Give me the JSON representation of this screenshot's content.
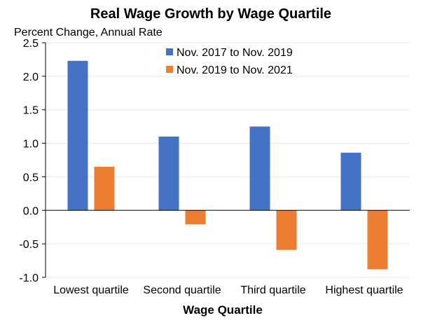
{
  "chart_data": {
    "type": "bar",
    "title": "Real Wage Growth by Wage Quartile",
    "ylabel": "Percent Change, Annual Rate",
    "xlabel": "Wage Quartile",
    "categories": [
      "Lowest quartile",
      "Second quartile",
      "Third quartile",
      "Highest quartile"
    ],
    "series": [
      {
        "name": "Nov. 2017 to Nov. 2019",
        "color": "#4472C4",
        "values": [
          2.23,
          1.1,
          1.25,
          0.86
        ]
      },
      {
        "name": "Nov. 2019 to Nov. 2021",
        "color": "#ED7D31",
        "values": [
          0.65,
          -0.21,
          -0.59,
          -0.88
        ]
      }
    ],
    "ylim": [
      -1.0,
      2.5
    ],
    "yticks": [
      "-1.0",
      "-0.5",
      "0.0",
      "0.5",
      "1.0",
      "1.5",
      "2.0",
      "2.5"
    ],
    "grid": true,
    "legend_position": "top"
  }
}
